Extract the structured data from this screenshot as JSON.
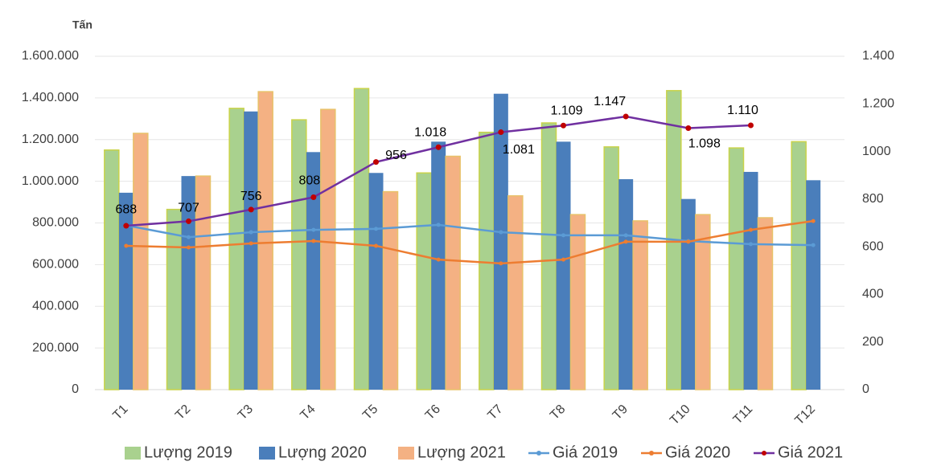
{
  "chart_data": {
    "type": "bar",
    "y_unit_label": "Tấn",
    "categories": [
      "T1",
      "T2",
      "T3",
      "T4",
      "T5",
      "T6",
      "T7",
      "T8",
      "T9",
      "T10",
      "T11",
      "T12"
    ],
    "series": [
      {
        "name": "Lượng 2019",
        "type": "bar",
        "color": "#a9d18e",
        "values": [
          1150000,
          865000,
          1350000,
          1295000,
          1445000,
          1040000,
          1235000,
          1280000,
          1165000,
          1435000,
          1160000,
          1190000
        ]
      },
      {
        "name": "Lượng 2020",
        "type": "bar",
        "color": "#4a7ebb",
        "values": [
          945000,
          1025000,
          1335000,
          1140000,
          1040000,
          1190000,
          1420000,
          1190000,
          1010000,
          915000,
          1045000,
          1005000
        ]
      },
      {
        "name": "Lượng 2021",
        "type": "bar",
        "color": "#f4b183",
        "values": [
          1230000,
          1025000,
          1430000,
          1345000,
          950000,
          1120000,
          930000,
          840000,
          810000,
          840000,
          825000,
          null
        ]
      },
      {
        "name": "Giá 2019",
        "type": "line",
        "axis": "y2",
        "color": "#5b9bd5",
        "values": [
          690,
          640,
          661,
          671,
          675,
          692,
          661,
          648,
          648,
          624,
          611,
          607
        ]
      },
      {
        "name": "Giá 2020",
        "type": "line",
        "axis": "y2",
        "color": "#ed7d31",
        "values": [
          604,
          597,
          614,
          624,
          604,
          546,
          530,
          546,
          621,
          621,
          671,
          708
        ]
      },
      {
        "name": "Giá 2021",
        "type": "line",
        "axis": "y2",
        "color": "#7030a0",
        "marker_color": "#c00000",
        "values": [
          688,
          707,
          756,
          808,
          956,
          1018,
          1081,
          1109,
          1147,
          1098,
          1110,
          null
        ],
        "value_labels": [
          "688",
          "707",
          "756",
          "808",
          "956",
          "1.018",
          "1.081",
          "1.109",
          "1.147",
          "1.098",
          "1.110",
          null
        ]
      }
    ],
    "ylim": [
      0,
      1600000
    ],
    "yticks": [
      0,
      {
        "value": 200000,
        "label": "200.000"
      },
      {
        "value": 400000,
        "label": "400.000"
      },
      {
        "value": 600000,
        "label": "600.000"
      },
      {
        "value": 800000,
        "label": "800.000"
      },
      {
        "value": 1000000,
        "label": "1.000.000"
      },
      {
        "value": 1200000,
        "label": "1.200.000"
      },
      {
        "value": 1400000,
        "label": "1.400.000"
      },
      {
        "value": 1600000,
        "label": "1.600.000"
      }
    ],
    "y2lim": [
      0,
      1400
    ],
    "y2ticks": [
      0,
      200,
      400,
      600,
      800,
      1000,
      {
        "value": 1200,
        "label": "1.200"
      },
      {
        "value": 1400,
        "label": "1.400"
      }
    ],
    "grid": true,
    "legend": "bottom"
  }
}
